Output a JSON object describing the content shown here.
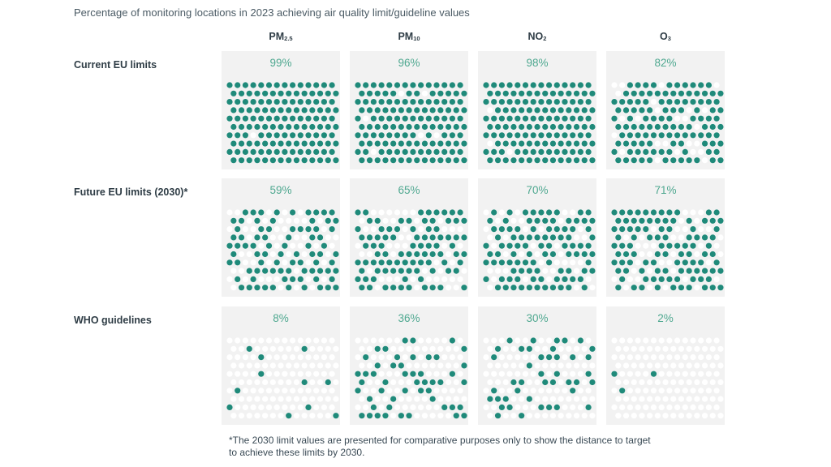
{
  "title": "Percentage of monitoring locations in 2023 achieving air quality limit/guideline values",
  "footnote_line1": "*The 2030 limit values are presented for comparative purposes only to show the distance to target",
  "footnote_line2": "to achieve these limits by 2030.",
  "colors": {
    "achieved": "#1f8a7a",
    "not_achieved": "#ffffff",
    "panel": "#f2f2f2",
    "percent": "#4fa890"
  },
  "chart_data": {
    "type": "waffle",
    "columns": [
      {
        "base": "PM",
        "sub": "2.5"
      },
      {
        "base": "PM",
        "sub": "10"
      },
      {
        "base": "NO",
        "sub": "2"
      },
      {
        "base": "O",
        "sub": "3"
      }
    ],
    "rows": [
      "Current EU limits",
      "Future EU limits (2030)*",
      "WHO guidelines"
    ],
    "values": [
      [
        99,
        96,
        98,
        82
      ],
      [
        59,
        65,
        70,
        71
      ],
      [
        8,
        36,
        30,
        2
      ]
    ],
    "labels": [
      [
        "99%",
        "96%",
        "98%",
        "82%"
      ],
      [
        "59%",
        "65%",
        "70%",
        "71%"
      ],
      [
        "8%",
        "36%",
        "30%",
        "2%"
      ]
    ]
  }
}
